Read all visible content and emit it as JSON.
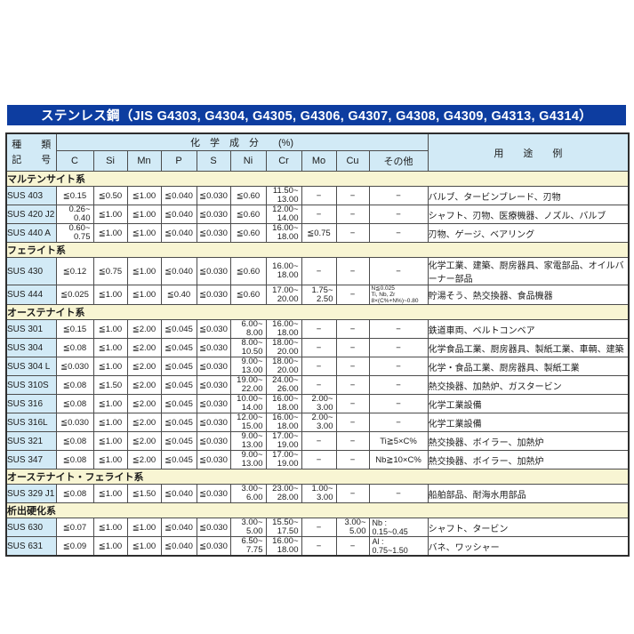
{
  "title": "ステンレス鋼（JIS G4303, G4304, G4305, G4306, G4307, G4308, G4309, G4313, G4314）",
  "colors": {
    "title_bar": "#0d3da0",
    "header_cell": "#d2eaf6",
    "section_row": "#f8f5d3"
  },
  "table": {
    "kind_label_line1": "種　　類",
    "kind_label_line2": "記　　号",
    "composition_header": "化　学　成　分　　(%)",
    "usage_header": "用　　途　　例",
    "element_columns": [
      "C",
      "Si",
      "Mn",
      "P",
      "S",
      "Ni",
      "Cr",
      "Mo",
      "Cu",
      "その他"
    ],
    "sections": [
      {
        "name": "マルテンサイト系",
        "rows": [
          {
            "grade": "SUS 403",
            "cells": [
              "≦0.15",
              "≦0.50",
              "≦1.00",
              "≦0.040",
              "≦0.030",
              "≦0.60",
              "11.50~\n13.00",
              "−",
              "−",
              "−"
            ],
            "usage": "バルブ、タービンブレード、刃物"
          },
          {
            "grade": "SUS 420 J2",
            "cells": [
              "0.26~\n0.40",
              "≦1.00",
              "≦1.00",
              "≦0.040",
              "≦0.030",
              "≦0.60",
              "12.00~\n14.00",
              "−",
              "−",
              "−"
            ],
            "usage": "シャフト、刃物、医療機器、ノズル、バルブ"
          },
          {
            "grade": "SUS 440 A",
            "cells": [
              "0.60~\n0.75",
              "≦1.00",
              "≦1.00",
              "≦0.040",
              "≦0.030",
              "≦0.60",
              "16.00~\n18.00",
              "≦0.75",
              "−",
              "−"
            ],
            "usage": "刃物、ゲージ、ベアリング"
          }
        ]
      },
      {
        "name": "フェライト系",
        "rows": [
          {
            "grade": "SUS 430",
            "cells": [
              "≦0.12",
              "≦0.75",
              "≦1.00",
              "≦0.040",
              "≦0.030",
              "≦0.60",
              "16.00~\n18.00",
              "−",
              "−",
              "−"
            ],
            "usage": "化学工業、建築、厨房器具、家電部品、オイルバーナー部品"
          },
          {
            "grade": "SUS 444",
            "cells": [
              "≦0.025",
              "≦1.00",
              "≦1.00",
              "≦0.40",
              "≦0.030",
              "≦0.60",
              "17.00~\n20.00",
              "1.75~\n2.50",
              "−",
              "N≦0.025\nTi, Nb, Zr\n8×(C%+N%)~0.80"
            ],
            "usage": "貯湯そう、熱交換器、食品機器"
          }
        ]
      },
      {
        "name": "オーステナイト系",
        "rows": [
          {
            "grade": "SUS 301",
            "cells": [
              "≦0.15",
              "≦1.00",
              "≦2.00",
              "≦0.045",
              "≦0.030",
              "6.00~\n8.00",
              "16.00~\n18.00",
              "−",
              "−",
              "−"
            ],
            "usage": "鉄道車両、ベルトコンベア"
          },
          {
            "grade": "SUS 304",
            "cells": [
              "≦0.08",
              "≦1.00",
              "≦2.00",
              "≦0.045",
              "≦0.030",
              "8.00~\n10.50",
              "18.00~\n20.00",
              "−",
              "−",
              "−"
            ],
            "usage": "化学食品工業、厨房器具、製紙工業、車輌、建築"
          },
          {
            "grade": "SUS 304 L",
            "cells": [
              "≦0.030",
              "≦1.00",
              "≦2.00",
              "≦0.045",
              "≦0.030",
              "9.00~\n13.00",
              "18.00~\n20.00",
              "−",
              "−",
              "−"
            ],
            "usage": "化学・食品工業、厨房器具、製紙工業"
          },
          {
            "grade": "SUS 310S",
            "cells": [
              "≦0.08",
              "≦1.50",
              "≦2.00",
              "≦0.045",
              "≦0.030",
              "19.00~\n22.00",
              "24.00~\n26.00",
              "−",
              "−",
              "−"
            ],
            "usage": "熱交換器、加熱炉、ガスタービン"
          },
          {
            "grade": "SUS 316",
            "cells": [
              "≦0.08",
              "≦1.00",
              "≦2.00",
              "≦0.045",
              "≦0.030",
              "10.00~\n14.00",
              "16.00~\n18.00",
              "2.00~\n3.00",
              "−",
              "−"
            ],
            "usage": "化学工業設備"
          },
          {
            "grade": "SUS 316L",
            "cells": [
              "≦0.030",
              "≦1.00",
              "≦2.00",
              "≦0.045",
              "≦0.030",
              "12.00~\n15.00",
              "16.00~\n18.00",
              "2.00~\n3.00",
              "−",
              "−"
            ],
            "usage": "化学工業設備"
          },
          {
            "grade": "SUS 321",
            "cells": [
              "≦0.08",
              "≦1.00",
              "≦2.00",
              "≦0.045",
              "≦0.030",
              "9.00~\n13.00",
              "17.00~\n19.00",
              "−",
              "−",
              "Ti≧5×C%"
            ],
            "usage": "熱交換器、ボイラー、加熱炉"
          },
          {
            "grade": "SUS 347",
            "cells": [
              "≦0.08",
              "≦1.00",
              "≦2.00",
              "≦0.045",
              "≦0.030",
              "9.00~\n13.00",
              "17.00~\n19.00",
              "−",
              "−",
              "Nb≧10×C%"
            ],
            "usage": "熱交換器、ボイラー、加熱炉"
          }
        ]
      },
      {
        "name": "オーステナイト・フェライト系",
        "rows": [
          {
            "grade": "SUS 329 J1",
            "cells": [
              "≦0.08",
              "≦1.00",
              "≦1.50",
              "≦0.040",
              "≦0.030",
              "3.00~\n6.00",
              "23.00~\n28.00",
              "1.00~\n3.00",
              "−",
              "−"
            ],
            "usage": "船舶部品、耐海水用部品"
          }
        ]
      },
      {
        "name": "析出硬化系",
        "rows": [
          {
            "grade": "SUS 630",
            "cells": [
              "≦0.07",
              "≦1.00",
              "≦1.00",
              "≦0.040",
              "≦0.030",
              "3.00~\n5.00",
              "15.50~\n17.50",
              "−",
              "3.00~\n5.00",
              "Nb :\n0.15~0.45"
            ],
            "usage": "シャフト、タービン"
          },
          {
            "grade": "SUS 631",
            "cells": [
              "≦0.09",
              "≦1.00",
              "≦1.00",
              "≦0.040",
              "≦0.030",
              "6.50~\n7.75",
              "16.00~\n18.00",
              "−",
              "−",
              "Al :\n0.75~1.50"
            ],
            "usage": "バネ、ワッシャー"
          }
        ]
      }
    ]
  }
}
